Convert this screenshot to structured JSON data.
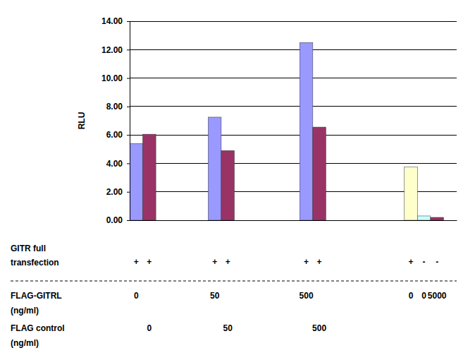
{
  "chart_data": {
    "type": "bar",
    "y_label": "RLU",
    "x_label": [
      "GITR full",
      "transfection"
    ],
    "categories": [
      "+",
      "+",
      null,
      null,
      null,
      null,
      "+",
      "+",
      null,
      null,
      null,
      null,
      null,
      "+",
      "+",
      null,
      null,
      null,
      null,
      null,
      null,
      "+",
      "-",
      "-",
      null
    ],
    "values": [
      5.4,
      6.05,
      null,
      null,
      null,
      null,
      7.25,
      4.9,
      null,
      null,
      null,
      null,
      null,
      12.5,
      6.55,
      null,
      null,
      null,
      null,
      null,
      null,
      3.75,
      0.3,
      0.2,
      null
    ],
    "colors": [
      "#9999ff",
      "#993366",
      null,
      null,
      null,
      null,
      "#9999ff",
      "#993366",
      null,
      null,
      null,
      null,
      null,
      "#9999ff",
      "#993366",
      null,
      null,
      null,
      null,
      null,
      null,
      "#ffffcc",
      "#ccffff",
      "#993366",
      null
    ],
    "rows": [
      {
        "label": [
          "FLAG-GITRL",
          "(ng/ml)"
        ],
        "values": [
          0,
          null,
          null,
          null,
          null,
          null,
          50,
          null,
          null,
          null,
          null,
          null,
          null,
          500,
          null,
          null,
          null,
          null,
          null,
          null,
          null,
          0,
          0,
          5000,
          null
        ]
      },
      {
        "label": [
          "FLAG control",
          "(ng/ml)"
        ],
        "values": [
          null,
          0,
          null,
          null,
          null,
          null,
          null,
          50,
          null,
          null,
          null,
          null,
          null,
          null,
          500,
          null,
          null,
          null,
          null,
          null,
          null,
          null,
          null,
          null,
          null
        ]
      }
    ],
    "ylim": [
      0,
      14
    ],
    "yticks": [
      {
        "value": 0,
        "label": "0.00"
      },
      {
        "value": 2,
        "label": "2.00"
      },
      {
        "value": 4,
        "label": "4.00"
      },
      {
        "value": 6,
        "label": "6.00"
      },
      {
        "value": 8,
        "label": "8.00"
      },
      {
        "value": 10,
        "label": "10.00"
      },
      {
        "value": 12,
        "label": "12.00"
      },
      {
        "value": 14,
        "label": "14.00"
      }
    ],
    "grid": true
  }
}
